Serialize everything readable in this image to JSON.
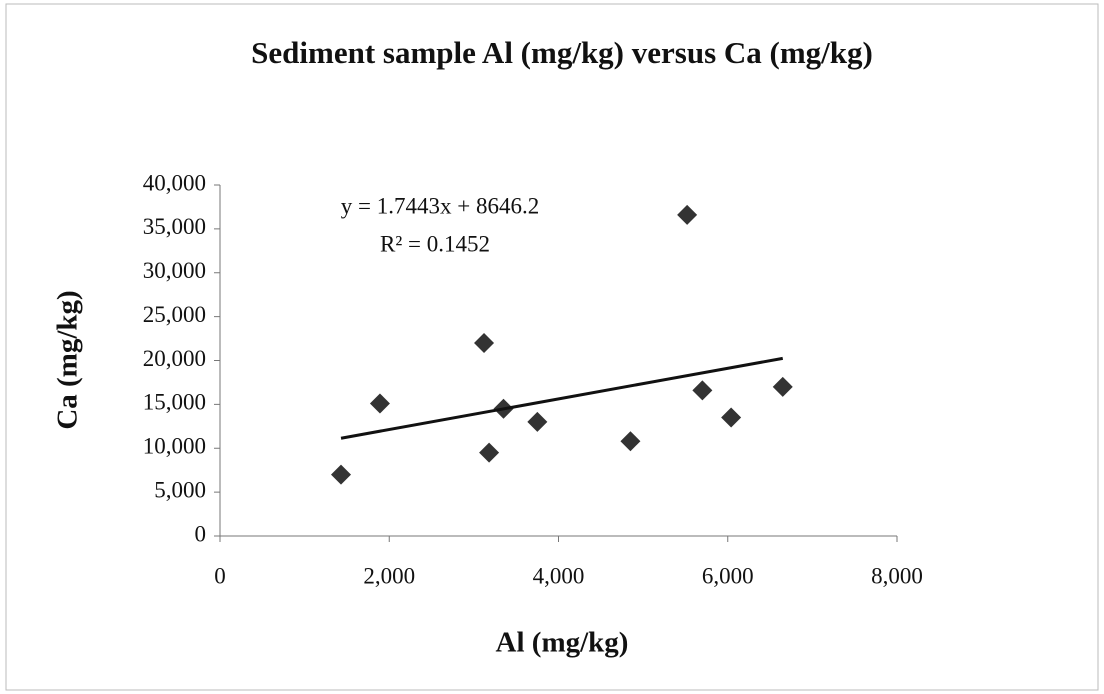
{
  "chart_data": {
    "type": "scatter",
    "title": "Sediment sample Al (mg/kg) versus Ca (mg/kg)",
    "x_label": "Al (mg/kg)",
    "y_label": "Ca (mg/kg)",
    "x": [
      1430,
      1890,
      3120,
      3180,
      3350,
      3750,
      4850,
      5520,
      5700,
      6040,
      6650
    ],
    "series": [
      {
        "color": "#333333",
        "values": [
          7000,
          15100,
          22000,
          9500,
          14500,
          13000,
          10800,
          36600,
          16600,
          13500,
          17000
        ]
      }
    ],
    "xlim": [
      0,
      8000
    ],
    "xticks": [
      0,
      {
        "value": 2000,
        "label": "2,000"
      },
      {
        "value": 4000,
        "label": "4,000"
      },
      {
        "value": 6000,
        "label": "6,000"
      },
      {
        "value": 8000,
        "label": "8,000"
      }
    ],
    "ylim": [
      0,
      40000
    ],
    "yticks": [
      0,
      {
        "value": 5000,
        "label": "5,000"
      },
      {
        "value": 10000,
        "label": "10,000"
      },
      {
        "value": 15000,
        "label": "15,000"
      },
      {
        "value": 20000,
        "label": "20,000"
      },
      {
        "value": 25000,
        "label": "25,000"
      },
      {
        "value": 30000,
        "label": "30,000"
      },
      {
        "value": 35000,
        "label": "35,000"
      },
      {
        "value": 40000,
        "label": "40,000"
      }
    ],
    "grid": false,
    "trendline": {
      "slope": 1.7443,
      "intercept": 8646.2,
      "equation": "y = 1.7443x  + 8646.2",
      "r2": "R² = 0.1452",
      "color": "#111111"
    }
  }
}
